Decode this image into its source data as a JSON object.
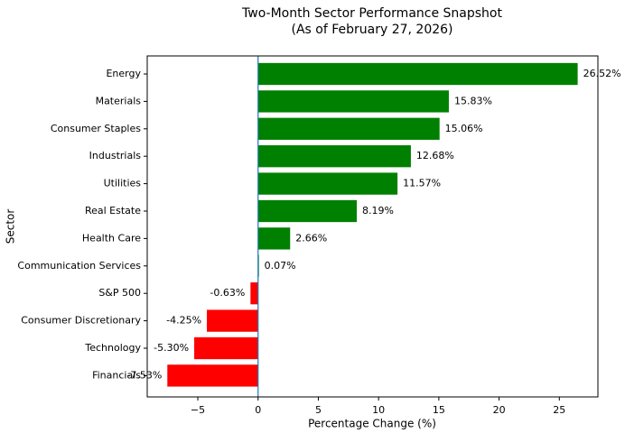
{
  "chart_data": {
    "type": "barh",
    "title": "Two-Month Sector Performance Snapshot",
    "subtitle": "(As of February 27, 2026)",
    "x_label": "Percentage Change (%)",
    "y_label": "Sector",
    "categories": [
      "Energy",
      "Materials",
      "Consumer Staples",
      "Industrials",
      "Utilities",
      "Real Estate",
      "Health Care",
      "Communication Services",
      "S&P 500",
      "Consumer Discretionary",
      "Technology",
      "Financials"
    ],
    "values": [
      26.52,
      15.83,
      15.06,
      12.68,
      11.57,
      8.19,
      2.66,
      0.07,
      -0.63,
      -4.25,
      -5.3,
      -7.53
    ],
    "value_labels": [
      "26.52%",
      "15.83%",
      "15.06%",
      "12.68%",
      "11.57%",
      "8.19%",
      "2.66%",
      "0.07%",
      "-0.63%",
      "-4.25%",
      "-5.30%",
      "-7.53%"
    ],
    "positive_color": "green",
    "negative_color": "red",
    "reference_line": {
      "value": 0,
      "color": "#1f77b4"
    },
    "xlim": [
      -9.2,
      28.2
    ],
    "xticks": [
      {
        "value": -5,
        "label": "−5"
      },
      0,
      5,
      10,
      15,
      20,
      25
    ]
  }
}
